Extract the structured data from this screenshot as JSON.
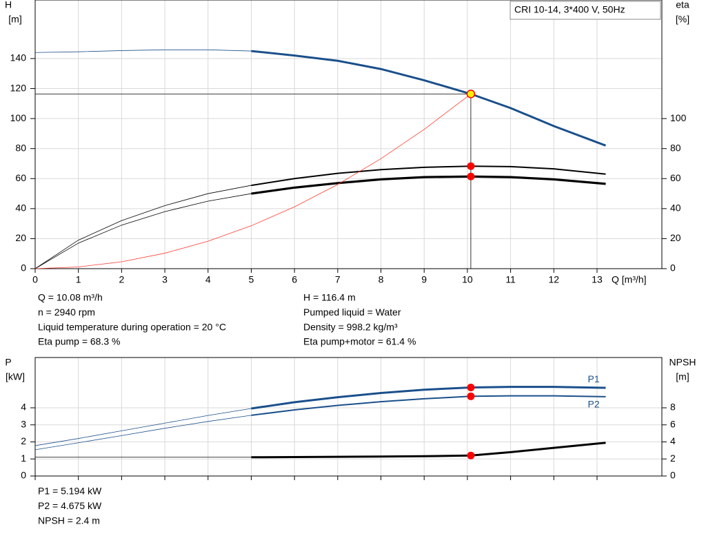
{
  "chart_data": [
    {
      "type": "line",
      "title": "CRI 10-14, 3*400 V, 50Hz",
      "ylabel": [
        "H",
        "[m]"
      ],
      "y2label": [
        "eta",
        "[%]"
      ],
      "xlabel": "Q [m³/h]",
      "x": [
        0,
        1,
        2,
        3,
        4,
        5,
        6,
        7,
        8,
        9,
        10.08,
        11,
        12,
        13.2
      ],
      "xlim": [
        0,
        14.5
      ],
      "xticks": [
        0,
        1,
        2,
        3,
        4,
        5,
        6,
        7,
        8,
        9,
        10,
        11,
        12,
        13
      ],
      "ylim": [
        0,
        179
      ],
      "yticks": [
        0,
        20,
        40,
        60,
        80,
        100,
        120,
        140
      ],
      "y2lim": [
        0,
        179
      ],
      "y2ticks": [
        0,
        20,
        40,
        60,
        80,
        100
      ],
      "grid": true,
      "operating_index": 10,
      "series": [
        {
          "color": "#1a4f8b",
          "line_width": 3,
          "thick_from": 5,
          "marker_color": "#ffee00",
          "values": [
            144,
            144.5,
            145.3,
            145.8,
            145.8,
            145,
            142,
            138.5,
            133,
            125.5,
            116.4,
            107,
            95,
            82
          ]
        },
        {
          "color": "#000000",
          "axis": "y2",
          "line_width": 2,
          "thick_from": 5,
          "marker_color": "#ff0000",
          "values": [
            0,
            19,
            32,
            42,
            50,
            55.5,
            60,
            63.5,
            66,
            67.5,
            68.3,
            68,
            66.5,
            63
          ]
        },
        {
          "color": "#000000",
          "axis": "y2",
          "line_width": 3.2,
          "thick_from": 5,
          "marker_color": "#ff0000",
          "values": [
            0,
            17,
            29,
            38,
            45,
            50,
            54,
            57,
            59.5,
            61,
            61.4,
            61,
            59.5,
            56.5
          ]
        },
        {
          "color": "#ff3b30",
          "line_width": 0.8,
          "values": [
            0,
            1.15,
            4.6,
            10.3,
            18.3,
            28.6,
            41.2,
            56.1,
            73.3,
            92.8,
            116.4,
            null,
            null,
            null
          ]
        }
      ],
      "info": [
        [
          "Q = 10.08 m³/h",
          "n = 2940 rpm",
          "Liquid temperature during operation = 20 °C",
          "Eta pump = 68.3 %"
        ],
        [
          "H = 116.4 m",
          "Pumped liquid = Water",
          "Density = 998.2 kg/m³",
          "Eta pump+motor = 61.4 %"
        ]
      ]
    },
    {
      "type": "line",
      "ylabel": [
        "P",
        "[kW]"
      ],
      "y2label": [
        "NPSH",
        "[m]"
      ],
      "x": [
        0,
        1,
        2,
        3,
        4,
        5,
        6,
        7,
        8,
        9,
        10.08,
        11,
        12,
        13.2
      ],
      "xlim": [
        0,
        14.5
      ],
      "xticks": [
        0,
        1,
        2,
        3,
        4,
        5,
        6,
        7,
        8,
        9,
        10,
        11,
        12,
        13
      ],
      "ylim": [
        0,
        6.95
      ],
      "yticks": [
        0,
        1,
        2,
        3,
        4
      ],
      "y2lim": [
        0,
        13.9
      ],
      "y2ticks": [
        0,
        2,
        4,
        6,
        8
      ],
      "grid": true,
      "series": [
        {
          "name": "P1",
          "color": "#1a4f8b",
          "line_width": 3,
          "thick_from": 5,
          "marker_color": "#ff0000",
          "values": [
            1.78,
            2.2,
            2.65,
            3.1,
            3.55,
            3.96,
            4.33,
            4.62,
            4.87,
            5.06,
            5.194,
            5.23,
            5.23,
            5.17
          ]
        },
        {
          "name": "P2",
          "color": "#1a4f8b",
          "line_width": 2,
          "thick_from": 5,
          "marker_color": "#ff0000",
          "values": [
            1.54,
            1.95,
            2.37,
            2.8,
            3.2,
            3.56,
            3.88,
            4.14,
            4.36,
            4.53,
            4.675,
            4.7,
            4.7,
            4.65
          ]
        },
        {
          "color": "#000000",
          "axis": "y2",
          "line_width": 3,
          "thick_from": 5,
          "marker_color": "#ff0000",
          "values": [
            2.2,
            2.2,
            2.2,
            2.2,
            2.2,
            2.2,
            2.22,
            2.25,
            2.28,
            2.32,
            2.4,
            2.8,
            3.3,
            3.9
          ]
        }
      ],
      "info": [
        [
          "P1 = 5.194 kW",
          "P2 = 4.675 kW",
          "NPSH = 2.4 m"
        ]
      ]
    }
  ]
}
